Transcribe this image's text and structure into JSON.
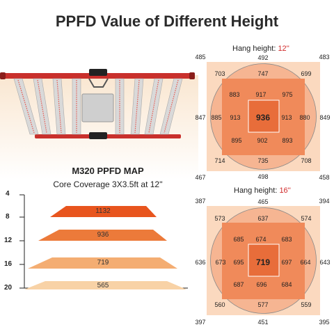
{
  "title": "PPFD Value of Different Height",
  "product": {
    "map_title": "M320 PPFD MAP",
    "coverage": "Core Coverage 3X3.5ft at 12''"
  },
  "height_scale": {
    "ticks": [
      "4",
      "8",
      "12",
      "16",
      "20"
    ]
  },
  "layers": [
    {
      "value": "1132",
      "color": "#e8551e"
    },
    {
      "value": "936",
      "color": "#ec7a3a"
    },
    {
      "value": "719",
      "color": "#f4ad72"
    },
    {
      "value": "565",
      "color": "#f8d2a6"
    }
  ],
  "maps": [
    {
      "label": "Hang height: ",
      "height": "12''",
      "center": "936",
      "corners": [
        "485",
        "483",
        "467",
        "458"
      ],
      "edges": {
        "top": "492",
        "bottom": "498",
        "left": "847",
        "right": "849"
      },
      "outer": {
        "tl": "703",
        "tm": "747",
        "tr": "699",
        "bl": "714",
        "bm": "735",
        "br": "708"
      },
      "inner": {
        "tl": "883",
        "tm": "917",
        "tr": "975",
        "ml": "885",
        "mr": "880",
        "bl": "895",
        "bm": "902",
        "br": "893"
      },
      "core": {
        "left": "913",
        "right": "913"
      }
    },
    {
      "label": "Hang height: ",
      "height": "16''",
      "center": "719",
      "corners": [
        "387",
        "394",
        "397",
        "395"
      ],
      "edges": {
        "top": "465",
        "bottom": "451",
        "left": "636",
        "right": "643"
      },
      "outer": {
        "tl": "573",
        "tm": "637",
        "tr": "574",
        "bl": "560",
        "bm": "577",
        "br": "559"
      },
      "inner": {
        "tl": "685",
        "tm": "674",
        "tr": "683",
        "ml": "673",
        "mr": "664",
        "bl": "687",
        "bm": "696",
        "br": "684"
      },
      "core": {
        "left": "695",
        "right": "697"
      }
    }
  ],
  "colors": {
    "frame": "#c9302c",
    "square_bg": "#fbd9bf",
    "circle": "#f6b592",
    "inner": "#f08a5a",
    "core": "#e86d3a",
    "text_red": "#d12a2a"
  }
}
